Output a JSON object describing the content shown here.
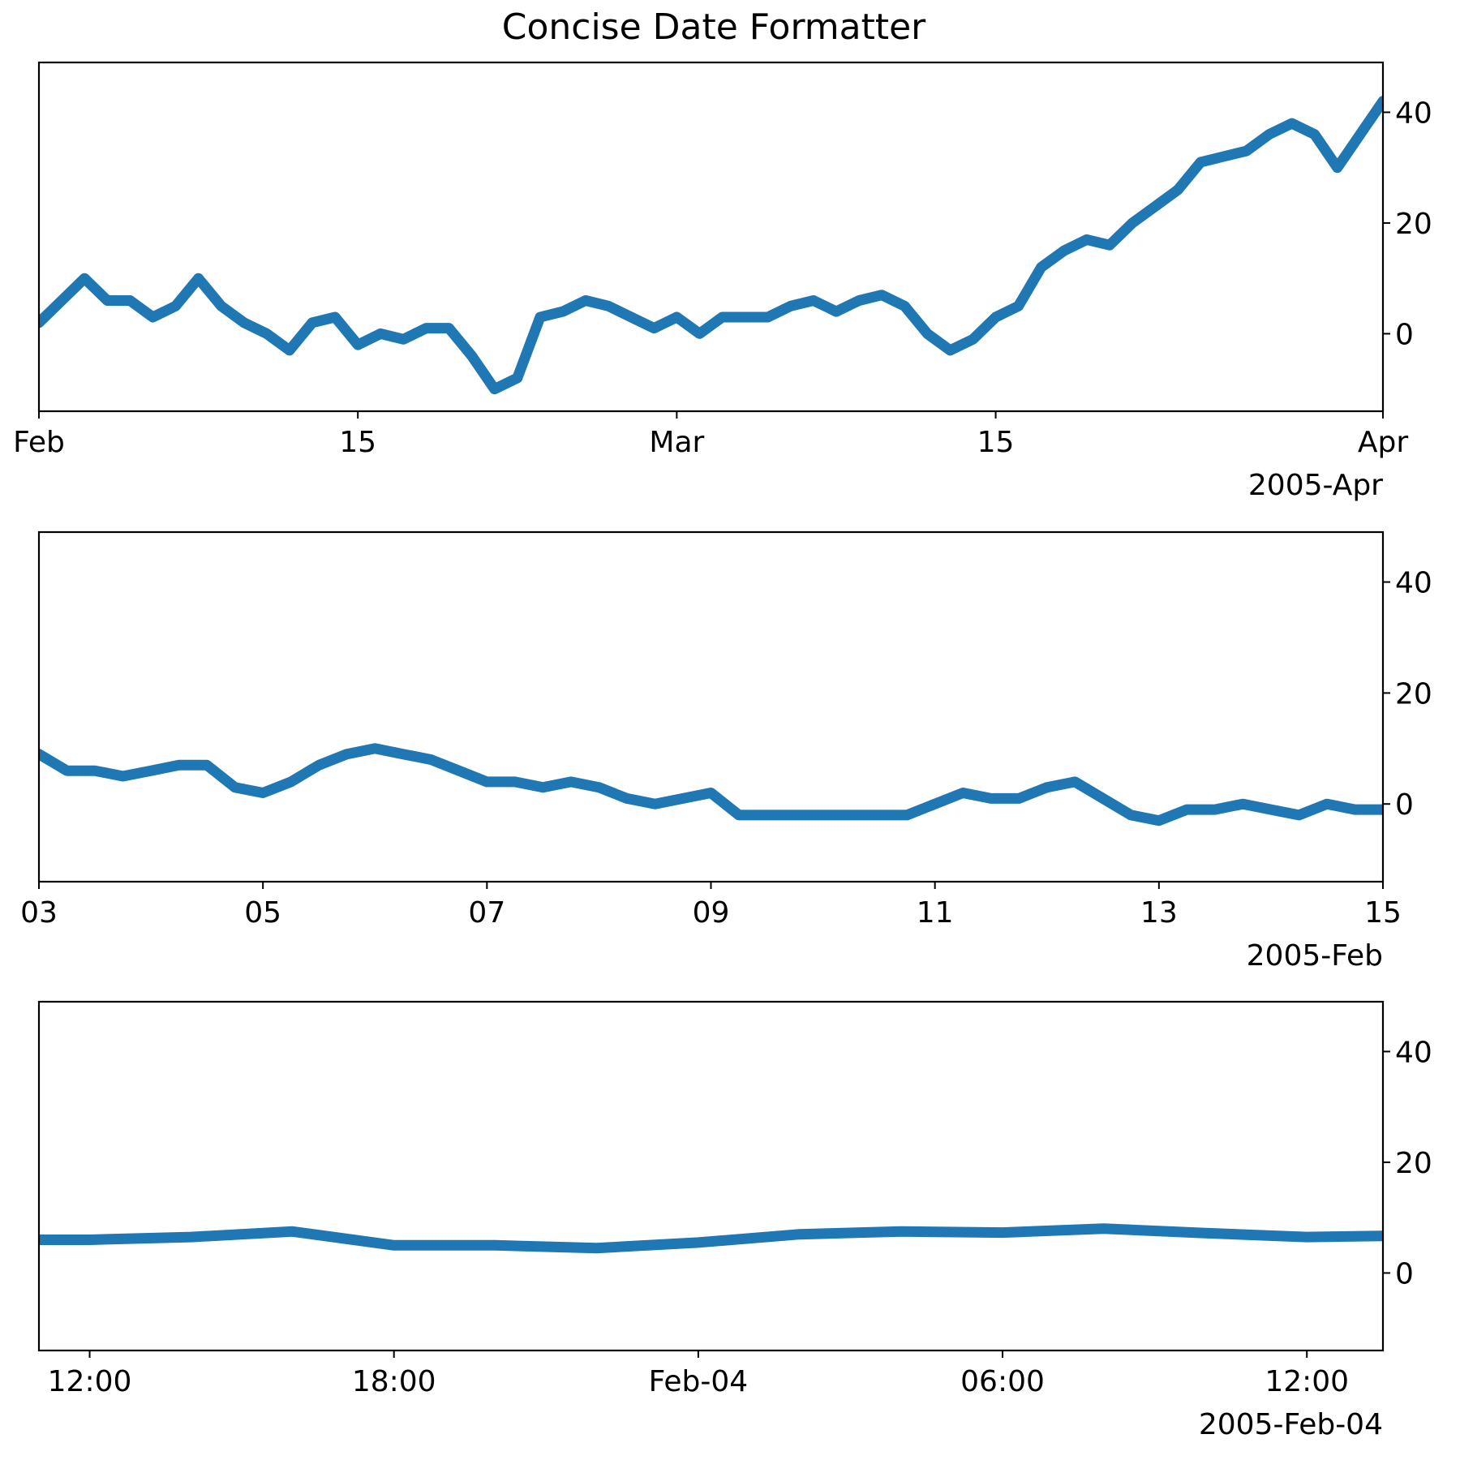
{
  "figure": {
    "title": "Concise Date Formatter",
    "line_color": "#1f77b4"
  },
  "chart_data": [
    {
      "type": "line",
      "title": "Concise Date Formatter",
      "xlabel": "",
      "ylabel": "",
      "x_axis": "date",
      "xlim": [
        "2005-02-01",
        "2005-04-01"
      ],
      "ylim": [
        -14,
        49
      ],
      "y_ticks": [
        0,
        20,
        40
      ],
      "y_tick_labels": [
        "0",
        "20",
        "40"
      ],
      "y_axis_side": "right",
      "x_ticks": [
        "2005-02-01",
        "2005-02-15",
        "2005-03-01",
        "2005-03-15",
        "2005-04-01"
      ],
      "x_tick_labels": [
        "Feb",
        "15",
        "Mar",
        "15",
        "Apr"
      ],
      "offset_label": "2005-Apr",
      "grid": false,
      "series": [
        {
          "x": [
            "2005-02-01",
            "2005-02-02",
            "2005-02-03",
            "2005-02-04",
            "2005-02-05",
            "2005-02-06",
            "2005-02-07",
            "2005-02-08",
            "2005-02-09",
            "2005-02-10",
            "2005-02-11",
            "2005-02-12",
            "2005-02-13",
            "2005-02-14",
            "2005-02-15",
            "2005-02-16",
            "2005-02-17",
            "2005-02-18",
            "2005-02-19",
            "2005-02-20",
            "2005-02-21",
            "2005-02-22",
            "2005-02-23",
            "2005-02-24",
            "2005-02-25",
            "2005-02-26",
            "2005-02-27",
            "2005-02-28",
            "2005-03-01",
            "2005-03-02",
            "2005-03-03",
            "2005-03-04",
            "2005-03-05",
            "2005-03-06",
            "2005-03-07",
            "2005-03-08",
            "2005-03-09",
            "2005-03-10",
            "2005-03-11",
            "2005-03-12",
            "2005-03-13",
            "2005-03-14",
            "2005-03-15",
            "2005-03-16",
            "2005-03-17",
            "2005-03-18",
            "2005-03-19",
            "2005-03-20",
            "2005-03-21",
            "2005-03-22",
            "2005-03-23",
            "2005-03-24",
            "2005-03-25",
            "2005-03-26",
            "2005-03-27",
            "2005-03-28",
            "2005-03-29",
            "2005-03-30",
            "2005-03-31",
            "2005-04-01"
          ],
          "y": [
            2,
            6,
            10,
            6,
            6,
            3,
            5,
            10,
            5,
            2,
            0,
            -3,
            2,
            3,
            -2,
            0,
            -1,
            1,
            1,
            -4,
            -10,
            -8,
            3,
            4,
            6,
            5,
            3,
            1,
            3,
            0,
            3,
            3,
            3,
            5,
            6,
            4,
            6,
            7,
            5,
            0,
            -3,
            -1,
            3,
            5,
            12,
            15,
            17,
            16,
            20,
            23,
            26,
            31,
            32,
            33,
            36,
            38,
            36,
            30,
            36,
            42
          ]
        }
      ]
    },
    {
      "type": "line",
      "title": "",
      "xlabel": "",
      "ylabel": "",
      "x_axis": "date",
      "xlim": [
        "2005-02-03",
        "2005-02-15"
      ],
      "ylim": [
        -14,
        49
      ],
      "y_ticks": [
        0,
        20,
        40
      ],
      "y_tick_labels": [
        "0",
        "20",
        "40"
      ],
      "y_axis_side": "right",
      "x_ticks": [
        "2005-02-03",
        "2005-02-05",
        "2005-02-07",
        "2005-02-09",
        "2005-02-11",
        "2005-02-13",
        "2005-02-15"
      ],
      "x_tick_labels": [
        "03",
        "05",
        "07",
        "09",
        "11",
        "13",
        "15"
      ],
      "offset_label": "2005-Feb",
      "grid": false,
      "series": [
        {
          "x": [
            "2005-02-03T00:00",
            "2005-02-03T06:00",
            "2005-02-03T12:00",
            "2005-02-03T18:00",
            "2005-02-04T00:00",
            "2005-02-04T06:00",
            "2005-02-04T12:00",
            "2005-02-04T18:00",
            "2005-02-05T00:00",
            "2005-02-05T06:00",
            "2005-02-05T12:00",
            "2005-02-05T18:00",
            "2005-02-06T00:00",
            "2005-02-06T06:00",
            "2005-02-06T12:00",
            "2005-02-06T18:00",
            "2005-02-07T00:00",
            "2005-02-07T06:00",
            "2005-02-07T12:00",
            "2005-02-07T18:00",
            "2005-02-08T00:00",
            "2005-02-08T06:00",
            "2005-02-08T12:00",
            "2005-02-08T18:00",
            "2005-02-09T00:00",
            "2005-02-09T06:00",
            "2005-02-09T12:00",
            "2005-02-09T18:00",
            "2005-02-10T00:00",
            "2005-02-10T06:00",
            "2005-02-10T12:00",
            "2005-02-10T18:00",
            "2005-02-11T00:00",
            "2005-02-11T06:00",
            "2005-02-11T12:00",
            "2005-02-11T18:00",
            "2005-02-12T00:00",
            "2005-02-12T06:00",
            "2005-02-12T12:00",
            "2005-02-12T18:00",
            "2005-02-13T00:00",
            "2005-02-13T06:00",
            "2005-02-13T12:00",
            "2005-02-13T18:00",
            "2005-02-14T00:00",
            "2005-02-14T06:00",
            "2005-02-14T12:00",
            "2005-02-14T18:00",
            "2005-02-15T00:00"
          ],
          "y": [
            9,
            6,
            6,
            5,
            6,
            7,
            7,
            3,
            2,
            4,
            7,
            9,
            10,
            9,
            8,
            6,
            4,
            4,
            3,
            4,
            3,
            1,
            0,
            1,
            2,
            -2,
            -2,
            -2,
            -2,
            -2,
            -2,
            -2,
            0,
            2,
            1,
            1,
            3,
            4,
            1,
            -2,
            -3,
            -1,
            -1,
            0,
            -1,
            -2,
            0,
            -1,
            -1
          ]
        }
      ]
    },
    {
      "type": "line",
      "title": "",
      "xlabel": "",
      "ylabel": "",
      "x_axis": "datetime",
      "xlim": [
        "2005-02-03T11:00",
        "2005-02-04T13:30"
      ],
      "ylim": [
        -14,
        49
      ],
      "y_ticks": [
        0,
        20,
        40
      ],
      "y_tick_labels": [
        "0",
        "20",
        "40"
      ],
      "y_axis_side": "right",
      "x_ticks": [
        "2005-02-03T12:00",
        "2005-02-03T18:00",
        "2005-02-04T00:00",
        "2005-02-04T06:00",
        "2005-02-04T12:00"
      ],
      "x_tick_labels": [
        "12:00",
        "18:00",
        "Feb-04",
        "06:00",
        "12:00"
      ],
      "offset_label": "2005-Feb-04",
      "grid": false,
      "series": [
        {
          "x": [
            "2005-02-03T11:00",
            "2005-02-03T12:00",
            "2005-02-03T14:00",
            "2005-02-03T16:00",
            "2005-02-03T18:00",
            "2005-02-03T20:00",
            "2005-02-03T22:00",
            "2005-02-04T00:00",
            "2005-02-04T02:00",
            "2005-02-04T04:00",
            "2005-02-04T06:00",
            "2005-02-04T08:00",
            "2005-02-04T10:00",
            "2005-02-04T12:00",
            "2005-02-04T13:30"
          ],
          "y": [
            6,
            6,
            6.5,
            7.5,
            5,
            5,
            4.5,
            5.5,
            7,
            7.5,
            7.3,
            8,
            7.2,
            6.5,
            6.7
          ]
        }
      ]
    }
  ]
}
